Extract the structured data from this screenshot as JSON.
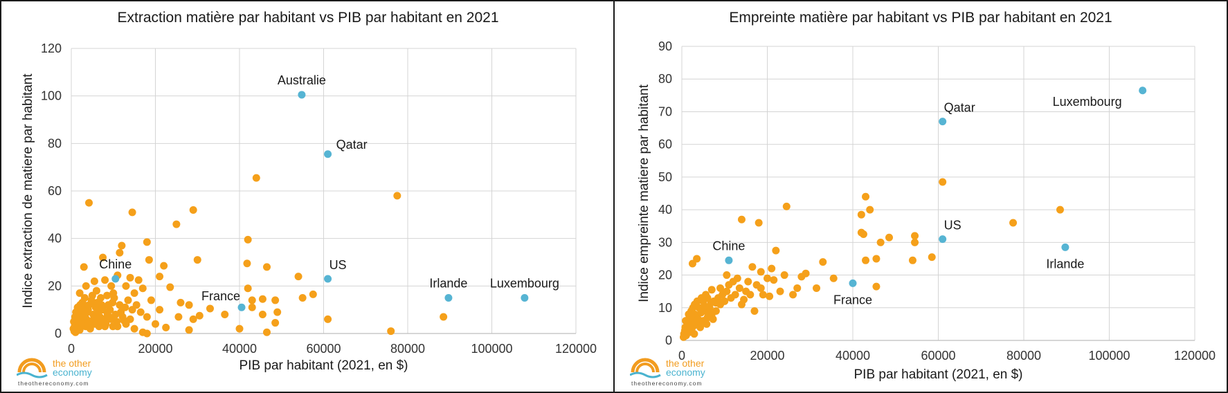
{
  "logo": {
    "word_the": "the other",
    "word_economy": "economy",
    "url": "theothereconomy.com"
  },
  "chart_data": [
    {
      "type": "scatter",
      "title": "Extraction matière par habitant vs PIB par habitant en 2021",
      "xlabel": "PIB par habitant (2021, en $)",
      "ylabel": "Indice extraction de matiere par habitant",
      "xlim": [
        0,
        120000
      ],
      "ylim": [
        0,
        120
      ],
      "xticks": [
        0,
        20000,
        40000,
        60000,
        80000,
        100000,
        120000
      ],
      "yticks": [
        0,
        20,
        40,
        60,
        80,
        100,
        120
      ],
      "grid": true,
      "colors": {
        "others": "#f5a01a",
        "highlight": "#56b4d3"
      },
      "highlighted": [
        {
          "label": "Australie",
          "x": 54800,
          "y": 100.5,
          "label_pos": "above"
        },
        {
          "label": "Qatar",
          "x": 61000,
          "y": 75.5,
          "label_pos": "right"
        },
        {
          "label": "US",
          "x": 61000,
          "y": 23,
          "label_pos": "above-right"
        },
        {
          "label": "Chine",
          "x": 10500,
          "y": 23,
          "label_pos": "above"
        },
        {
          "label": "France",
          "x": 40500,
          "y": 11,
          "label_pos": "above-left"
        },
        {
          "label": "Irlande",
          "x": 89700,
          "y": 15,
          "label_pos": "above"
        },
        {
          "label": "Luxembourg",
          "x": 107800,
          "y": 15,
          "label_pos": "above"
        }
      ],
      "points": [
        [
          4200,
          55
        ],
        [
          14500,
          51
        ],
        [
          29000,
          52
        ],
        [
          25000,
          46
        ],
        [
          44000,
          65.5
        ],
        [
          77500,
          58
        ],
        [
          18000,
          38.5
        ],
        [
          12000,
          37
        ],
        [
          11500,
          34
        ],
        [
          7500,
          32
        ],
        [
          18500,
          31
        ],
        [
          30000,
          31
        ],
        [
          3000,
          28
        ],
        [
          22000,
          28.5
        ],
        [
          46500,
          28
        ],
        [
          42000,
          39.5
        ],
        [
          41800,
          29.5
        ],
        [
          54000,
          24
        ],
        [
          11000,
          24.5
        ],
        [
          14000,
          23.5
        ],
        [
          16000,
          22.5
        ],
        [
          21000,
          24
        ],
        [
          5500,
          22
        ],
        [
          8000,
          22.5
        ],
        [
          3500,
          20
        ],
        [
          9500,
          20
        ],
        [
          13000,
          20
        ],
        [
          17000,
          19
        ],
        [
          23500,
          19.5
        ],
        [
          42000,
          19
        ],
        [
          2000,
          17
        ],
        [
          6000,
          18
        ],
        [
          10000,
          17
        ],
        [
          15000,
          17
        ],
        [
          57500,
          16.5
        ],
        [
          55000,
          15
        ],
        [
          43000,
          14
        ],
        [
          45500,
          14.5
        ],
        [
          48500,
          14
        ],
        [
          19000,
          14
        ],
        [
          26000,
          13
        ],
        [
          28000,
          12
        ],
        [
          33000,
          10.5
        ],
        [
          30500,
          7.5
        ],
        [
          36500,
          8
        ],
        [
          21000,
          10
        ],
        [
          14500,
          10
        ],
        [
          5000,
          13
        ],
        [
          7000,
          15
        ],
        [
          3000,
          12
        ],
        [
          49000,
          9
        ],
        [
          45500,
          8
        ],
        [
          43000,
          11
        ],
        [
          25500,
          7
        ],
        [
          29000,
          6
        ],
        [
          18000,
          7
        ],
        [
          12500,
          5.5
        ],
        [
          9000,
          7
        ],
        [
          3800,
          9
        ],
        [
          1500,
          11
        ],
        [
          61000,
          6
        ],
        [
          48500,
          4.5
        ],
        [
          40000,
          2
        ],
        [
          46500,
          0.5
        ],
        [
          28000,
          1.5
        ],
        [
          22500,
          2.5
        ],
        [
          17000,
          0.5
        ],
        [
          18000,
          0
        ],
        [
          15000,
          2
        ],
        [
          76000,
          1
        ],
        [
          88500,
          7
        ],
        [
          6000,
          5
        ],
        [
          11000,
          3
        ],
        [
          1000,
          0.5
        ],
        [
          2500,
          4
        ],
        [
          8000,
          3
        ],
        [
          13000,
          4
        ],
        [
          20000,
          4
        ],
        [
          4500,
          2
        ],
        [
          700,
          1
        ],
        [
          1200,
          3
        ],
        [
          1800,
          6
        ],
        [
          2200,
          9
        ],
        [
          2600,
          13
        ],
        [
          3200,
          15
        ],
        [
          3600,
          6
        ],
        [
          4000,
          10
        ],
        [
          4800,
          14
        ],
        [
          5200,
          8
        ],
        [
          5800,
          11
        ],
        [
          6500,
          9
        ],
        [
          7200,
          12
        ],
        [
          7800,
          6
        ],
        [
          8500,
          16
        ],
        [
          9200,
          10
        ],
        [
          9800,
          13
        ],
        [
          10500,
          8
        ],
        [
          11500,
          12
        ],
        [
          12200,
          7
        ],
        [
          13500,
          14
        ],
        [
          600,
          5
        ],
        [
          900,
          7
        ],
        [
          1400,
          2
        ],
        [
          1700,
          8
        ],
        [
          2000,
          1.5
        ],
        [
          2400,
          11
        ],
        [
          2800,
          7
        ],
        [
          3400,
          3
        ],
        [
          4200,
          12
        ],
        [
          4600,
          5
        ],
        [
          5000,
          16
        ],
        [
          5500,
          4
        ],
        [
          6200,
          13
        ],
        [
          6800,
          7
        ],
        [
          7500,
          10
        ],
        [
          8200,
          4
        ],
        [
          8800,
          12
        ],
        [
          9500,
          6
        ],
        [
          10200,
          15
        ],
        [
          10800,
          5
        ],
        [
          11800,
          9
        ],
        [
          12800,
          11
        ],
        [
          14000,
          6
        ],
        [
          15500,
          12
        ],
        [
          16500,
          9
        ],
        [
          800,
          3
        ],
        [
          1100,
          9
        ],
        [
          1600,
          5
        ],
        [
          2100,
          12
        ],
        [
          2900,
          4
        ],
        [
          3300,
          8
        ],
        [
          3900,
          4
        ],
        [
          5300,
          6
        ],
        [
          6600,
          3
        ],
        [
          7300,
          5
        ],
        [
          8600,
          8
        ],
        [
          9900,
          3
        ],
        [
          500,
          2
        ],
        [
          1300,
          6
        ],
        [
          2700,
          10
        ]
      ]
    },
    {
      "type": "scatter",
      "title": "Empreinte matière par habitant vs PIB par habitant en 2021",
      "xlabel": "PIB par habitant (2021, en $)",
      "ylabel": "Indice empreinte matiere par habitant",
      "xlim": [
        0,
        120000
      ],
      "ylim": [
        0,
        90
      ],
      "xticks": [
        0,
        20000,
        40000,
        60000,
        80000,
        100000,
        120000
      ],
      "yticks": [
        0,
        10,
        20,
        30,
        40,
        50,
        60,
        70,
        80,
        90
      ],
      "grid": true,
      "colors": {
        "others": "#f5a01a",
        "highlight": "#56b4d3"
      },
      "highlighted": [
        {
          "label": "Luxembourg",
          "x": 107800,
          "y": 76.5,
          "label_pos": "below-left"
        },
        {
          "label": "Qatar",
          "x": 61000,
          "y": 67,
          "label_pos": "above-right"
        },
        {
          "label": "US",
          "x": 61000,
          "y": 31,
          "label_pos": "above-right"
        },
        {
          "label": "Chine",
          "x": 11000,
          "y": 24.5,
          "label_pos": "above"
        },
        {
          "label": "France",
          "x": 40000,
          "y": 17.5,
          "label_pos": "below"
        },
        {
          "label": "Irlande",
          "x": 89700,
          "y": 28.5,
          "label_pos": "below"
        }
      ],
      "points": [
        [
          61000,
          48.5
        ],
        [
          43000,
          44
        ],
        [
          44000,
          40
        ],
        [
          42000,
          38.5
        ],
        [
          88500,
          40
        ],
        [
          77500,
          36
        ],
        [
          24500,
          41
        ],
        [
          14000,
          37
        ],
        [
          18000,
          36
        ],
        [
          48500,
          31.5
        ],
        [
          42000,
          33
        ],
        [
          42500,
          32.5
        ],
        [
          54500,
          32
        ],
        [
          54500,
          30
        ],
        [
          46500,
          30
        ],
        [
          22000,
          27.5
        ],
        [
          58500,
          25.5
        ],
        [
          54000,
          24.5
        ],
        [
          45500,
          25
        ],
        [
          43000,
          24.5
        ],
        [
          33000,
          24
        ],
        [
          29000,
          20.5
        ],
        [
          24000,
          20
        ],
        [
          21000,
          22
        ],
        [
          18500,
          21
        ],
        [
          16500,
          22.5
        ],
        [
          3500,
          25
        ],
        [
          2500,
          23.5
        ],
        [
          28000,
          19.5
        ],
        [
          35500,
          19
        ],
        [
          31500,
          16
        ],
        [
          45500,
          16.5
        ],
        [
          26000,
          14
        ],
        [
          27000,
          16
        ],
        [
          17000,
          9
        ],
        [
          20500,
          13.5
        ],
        [
          19000,
          14
        ],
        [
          15000,
          15
        ],
        [
          13000,
          19
        ],
        [
          10500,
          20
        ],
        [
          12000,
          18
        ],
        [
          9000,
          16
        ],
        [
          7000,
          15.5
        ],
        [
          11500,
          13
        ],
        [
          14500,
          12.5
        ],
        [
          8000,
          11.5
        ],
        [
          6000,
          13
        ],
        [
          5000,
          12
        ],
        [
          4000,
          10
        ],
        [
          3000,
          11
        ],
        [
          2200,
          9
        ],
        [
          1800,
          7
        ],
        [
          1200,
          6
        ],
        [
          800,
          4
        ],
        [
          500,
          2
        ],
        [
          1000,
          1.5
        ],
        [
          1500,
          3
        ],
        [
          2000,
          5
        ],
        [
          2500,
          6.5
        ],
        [
          3000,
          8
        ],
        [
          3500,
          7
        ],
        [
          4000,
          5
        ],
        [
          4500,
          8.5
        ],
        [
          5000,
          6
        ],
        [
          5500,
          9
        ],
        [
          6000,
          7
        ],
        [
          6500,
          10
        ],
        [
          7000,
          8
        ],
        [
          7500,
          12
        ],
        [
          8000,
          9
        ],
        [
          8500,
          13
        ],
        [
          9000,
          11
        ],
        [
          9500,
          14
        ],
        [
          10000,
          12
        ],
        [
          10500,
          15
        ],
        [
          11000,
          17
        ],
        [
          12500,
          14
        ],
        [
          13500,
          16
        ],
        [
          14000,
          11
        ],
        [
          15500,
          18
        ],
        [
          16000,
          14
        ],
        [
          17500,
          17
        ],
        [
          18500,
          16
        ],
        [
          20000,
          19
        ],
        [
          21500,
          18.5
        ],
        [
          23000,
          15
        ],
        [
          700,
          3
        ],
        [
          1300,
          4.5
        ],
        [
          1700,
          2.5
        ],
        [
          2300,
          3.5
        ],
        [
          2800,
          4.5
        ],
        [
          3200,
          5.5
        ],
        [
          3800,
          6.5
        ],
        [
          4300,
          4
        ],
        [
          4800,
          9.5
        ],
        [
          5300,
          10.5
        ],
        [
          5800,
          5
        ],
        [
          6300,
          8
        ],
        [
          6800,
          11.5
        ],
        [
          7300,
          6.5
        ],
        [
          900,
          6
        ],
        [
          1600,
          8
        ],
        [
          2600,
          10
        ],
        [
          3600,
          12
        ],
        [
          4600,
          13
        ],
        [
          5600,
          14
        ],
        [
          400,
          1
        ],
        [
          1100,
          2.5
        ],
        [
          1900,
          4
        ],
        [
          2900,
          2
        ]
      ]
    }
  ]
}
